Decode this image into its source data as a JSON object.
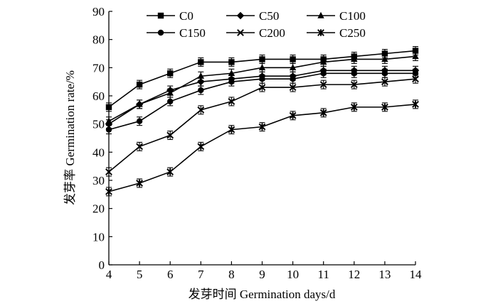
{
  "chart_data": {
    "type": "line",
    "xlabel": "发芽时间 Germination days/d",
    "ylabel": "发芽率 Germination rate/%",
    "xlim": [
      4,
      14
    ],
    "ylim": [
      0,
      90
    ],
    "x": [
      4,
      5,
      6,
      7,
      8,
      9,
      10,
      11,
      12,
      13,
      14
    ],
    "xticks": [
      4,
      5,
      6,
      7,
      8,
      9,
      10,
      11,
      12,
      13,
      14
    ],
    "yticks": [
      0,
      10,
      20,
      30,
      40,
      50,
      60,
      70,
      80,
      90
    ],
    "grid": false,
    "legend_position": "top",
    "series": [
      {
        "name": "C0",
        "marker": "square",
        "values": [
          56,
          64,
          68,
          72,
          72,
          73,
          73,
          73,
          74,
          75,
          76
        ],
        "error": 1.5
      },
      {
        "name": "C50",
        "marker": "diamond",
        "values": [
          50,
          57,
          62,
          65,
          66,
          67,
          67,
          69,
          69,
          69,
          69
        ],
        "error": 1.5
      },
      {
        "name": "C100",
        "marker": "triangle",
        "values": [
          51,
          57,
          61,
          67,
          68,
          70,
          70,
          72,
          73,
          73,
          74
        ],
        "error": 1.5
      },
      {
        "name": "C150",
        "marker": "circle",
        "values": [
          48,
          51,
          58,
          62,
          65,
          66,
          66,
          68,
          68,
          68,
          68
        ],
        "error": 1.5
      },
      {
        "name": "C200",
        "marker": "x",
        "values": [
          33,
          42,
          46,
          55,
          58,
          63,
          63,
          64,
          64,
          65,
          66
        ],
        "error": 1.5
      },
      {
        "name": "C250",
        "marker": "star",
        "values": [
          26,
          29,
          33,
          42,
          48,
          49,
          53,
          54,
          56,
          56,
          57
        ],
        "error": 1.5
      }
    ]
  }
}
